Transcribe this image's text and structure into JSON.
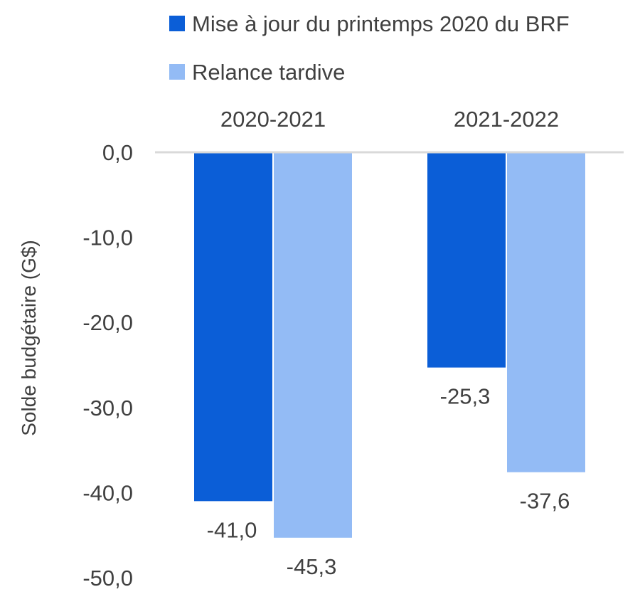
{
  "chart_data": {
    "type": "bar",
    "categories": [
      "2020-2021",
      "2021-2022"
    ],
    "series": [
      {
        "name": "Mise à jour du printemps 2020 du BRF",
        "values": [
          -41.0,
          -25.3
        ],
        "labels": [
          "-41,0",
          "-25,3"
        ],
        "color": "#0b5ed7"
      },
      {
        "name": "Relance tardive",
        "values": [
          -45.3,
          -37.6
        ],
        "labels": [
          "-45,3",
          "-37,6"
        ],
        "color": "#93bbf5"
      }
    ],
    "title": "",
    "xlabel": "",
    "ylabel": "Solde budgétaire (G$)",
    "ylim": [
      -50,
      0
    ],
    "yticks": [
      0,
      -10,
      -20,
      -30,
      -40,
      -50
    ],
    "ytick_labels": [
      "0,0",
      "-10,0",
      "-20,0",
      "-30,0",
      "-40,0",
      "-50,0"
    ],
    "category_axis": "top",
    "legend_position": "top",
    "grid": false,
    "axis_line_color": "#d9d9d9"
  }
}
